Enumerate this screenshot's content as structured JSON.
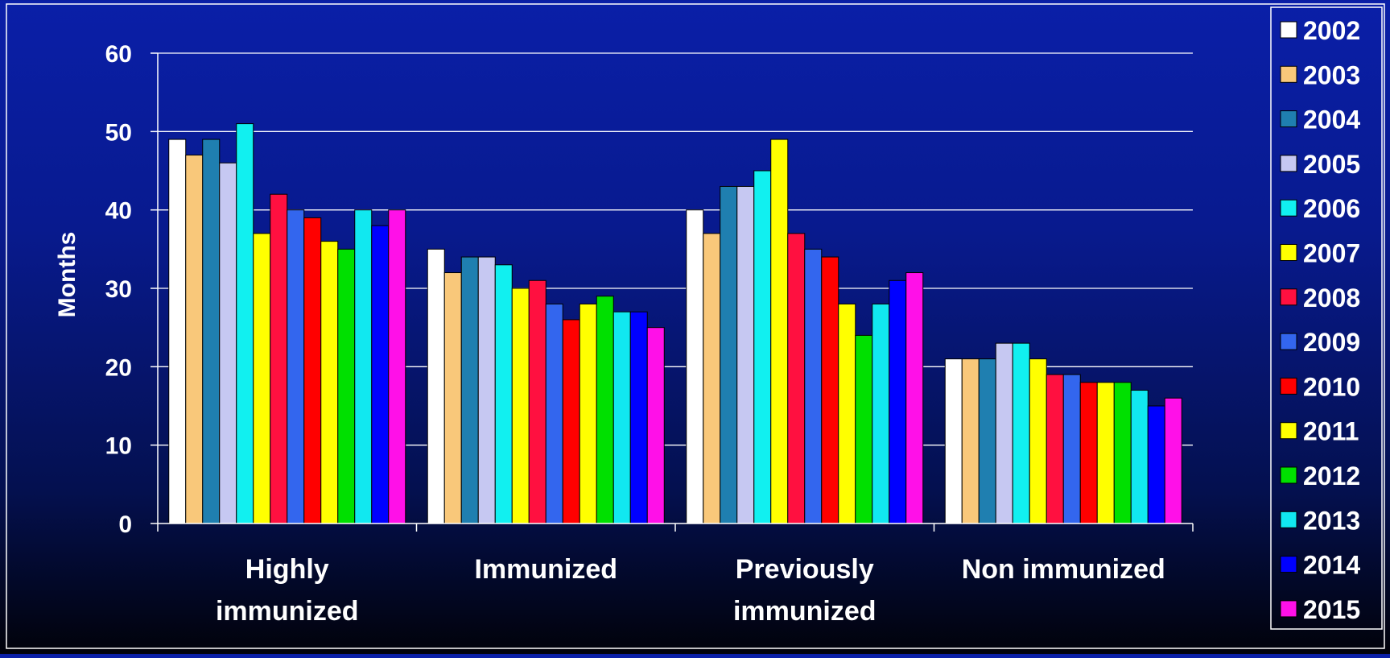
{
  "chart_data": {
    "type": "bar",
    "title": "",
    "xlabel": "",
    "ylabel": "Months",
    "ylim": [
      0,
      60
    ],
    "yticks": [
      0,
      10,
      20,
      30,
      40,
      50,
      60
    ],
    "grid": true,
    "legend_position": "right",
    "categories": [
      [
        "Highly",
        "immunized"
      ],
      [
        "Immunized"
      ],
      [
        "Previously",
        "immunized"
      ],
      [
        "Non immunized"
      ]
    ],
    "series": [
      {
        "name": "2002",
        "color": "#ffffff",
        "values": [
          49,
          35,
          40,
          21
        ]
      },
      {
        "name": "2003",
        "color": "#f9c87a",
        "values": [
          47,
          32,
          37,
          21
        ]
      },
      {
        "name": "2004",
        "color": "#1f7fb0",
        "values": [
          49,
          34,
          43,
          21
        ]
      },
      {
        "name": "2005",
        "color": "#c6c8f2",
        "values": [
          46,
          34,
          43,
          23
        ]
      },
      {
        "name": "2006",
        "color": "#11f0f0",
        "values": [
          51,
          33,
          45,
          23
        ]
      },
      {
        "name": "2007",
        "color": "#ffff00",
        "values": [
          37,
          30,
          49,
          21
        ]
      },
      {
        "name": "2008",
        "color": "#ff1040",
        "values": [
          42,
          31,
          37,
          19
        ]
      },
      {
        "name": "2009",
        "color": "#3366ee",
        "values": [
          40,
          28,
          35,
          19
        ]
      },
      {
        "name": "2010",
        "color": "#ff0000",
        "values": [
          39,
          26,
          34,
          18
        ]
      },
      {
        "name": "2011",
        "color": "#ffff00",
        "values": [
          36,
          28,
          28,
          18
        ]
      },
      {
        "name": "2012",
        "color": "#00e000",
        "values": [
          35,
          29,
          24,
          18
        ]
      },
      {
        "name": "2013",
        "color": "#11e8f0",
        "values": [
          40,
          27,
          28,
          17
        ]
      },
      {
        "name": "2014",
        "color": "#0000ff",
        "values": [
          38,
          27,
          31,
          15
        ]
      },
      {
        "name": "2015",
        "color": "#ff10e8",
        "values": [
          40,
          25,
          32,
          16
        ]
      }
    ]
  }
}
